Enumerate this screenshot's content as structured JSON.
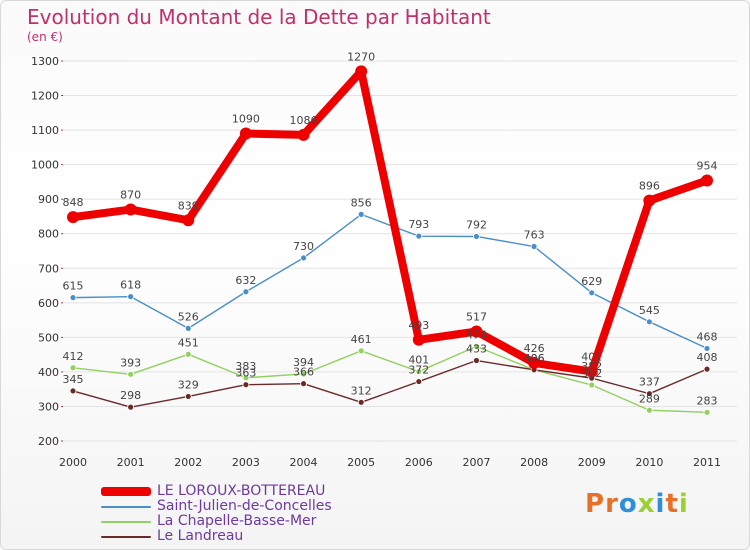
{
  "header": {
    "title": "Evolution du Montant de la Dette par Habitant",
    "subtitle": "(en €)"
  },
  "brand": {
    "text": "Proxiti",
    "colors": [
      "#e8712a",
      "#e8712a",
      "#2f8fd8",
      "#9bcf34",
      "#2f8fd8",
      "#e8712a",
      "#9bcf34"
    ]
  },
  "chart_data": {
    "type": "line",
    "x": [
      "2000",
      "2001",
      "2002",
      "2003",
      "2004",
      "2005",
      "2006",
      "2007",
      "2008",
      "2009",
      "2010",
      "2011"
    ],
    "ylim": [
      200,
      1300
    ],
    "yticks": [
      "200",
      "300",
      "400",
      "500",
      "600",
      "700",
      "800",
      "900",
      "1000",
      "1100",
      "1200",
      "1300"
    ],
    "grid": true,
    "legend_position": "bottom-left",
    "series": [
      {
        "name": "LE LOROUX-BOTTEREAU",
        "color": "#ee0000",
        "values": [
          848,
          870,
          839,
          1090,
          1086,
          1270,
          493,
          517,
          426,
          401,
          896,
          954
        ],
        "labels": [
          "848",
          "870",
          "839",
          "1090",
          "1086",
          "1270",
          "493",
          "517",
          "426",
          "401",
          "896",
          "954"
        ]
      },
      {
        "name": "Saint-Julien-de-Concelles",
        "color": "#4a8fc7",
        "values": [
          615,
          618,
          526,
          632,
          730,
          856,
          793,
          792,
          763,
          629,
          545,
          468
        ],
        "labels": [
          "615",
          "618",
          "526",
          "632",
          "730",
          "856",
          "793",
          "792",
          "763",
          "629",
          "545",
          "468"
        ]
      },
      {
        "name": "La Chapelle-Basse-Mer",
        "color": "#92d060",
        "values": [
          412,
          393,
          451,
          383,
          394,
          461,
          401,
          474,
          406,
          362,
          289,
          283
        ],
        "labels": [
          "412",
          "393",
          "451",
          "383",
          "394",
          "461",
          "401",
          "474",
          "406",
          "362",
          "289",
          "283"
        ]
      },
      {
        "name": "Le Landreau",
        "color": "#6b2a2a",
        "values": [
          345,
          298,
          329,
          363,
          366,
          312,
          372,
          433,
          406,
          382,
          337,
          408
        ],
        "labels": [
          "345",
          "298",
          "329",
          "363",
          "366",
          "312",
          "372",
          "433",
          "406",
          "382",
          "337",
          "408"
        ]
      }
    ]
  }
}
